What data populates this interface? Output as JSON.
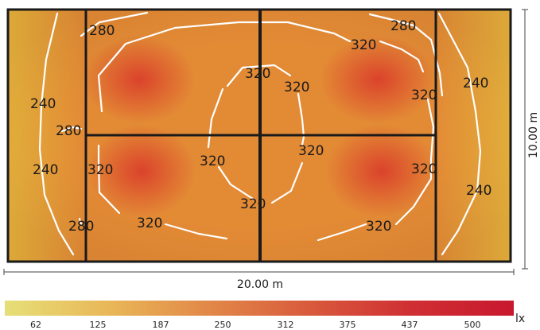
{
  "dimensions": {
    "width_label": "20.00 m",
    "height_label": "10.00 m"
  },
  "contour_labels": [
    "280",
    "280",
    "320",
    "320",
    "320",
    "320",
    "240",
    "320",
    "240",
    "280",
    "240",
    "320",
    "320",
    "320",
    "320",
    "240",
    "280",
    "320",
    "320"
  ],
  "colorbar": {
    "ticks": [
      "62",
      "125",
      "187",
      "250",
      "312",
      "375",
      "437",
      "500"
    ],
    "unit": "lx",
    "gradient": [
      "#e6df78",
      "#e9b858",
      "#e28848",
      "#d85a3c",
      "#cf2f33",
      "#c8182e"
    ]
  },
  "colors": {
    "room_edge": "#e7b23c",
    "room_mid": "#e38a35",
    "hotspot": "#d9362a",
    "contour": "#ffffff",
    "structure": "#1a1a1a"
  }
}
